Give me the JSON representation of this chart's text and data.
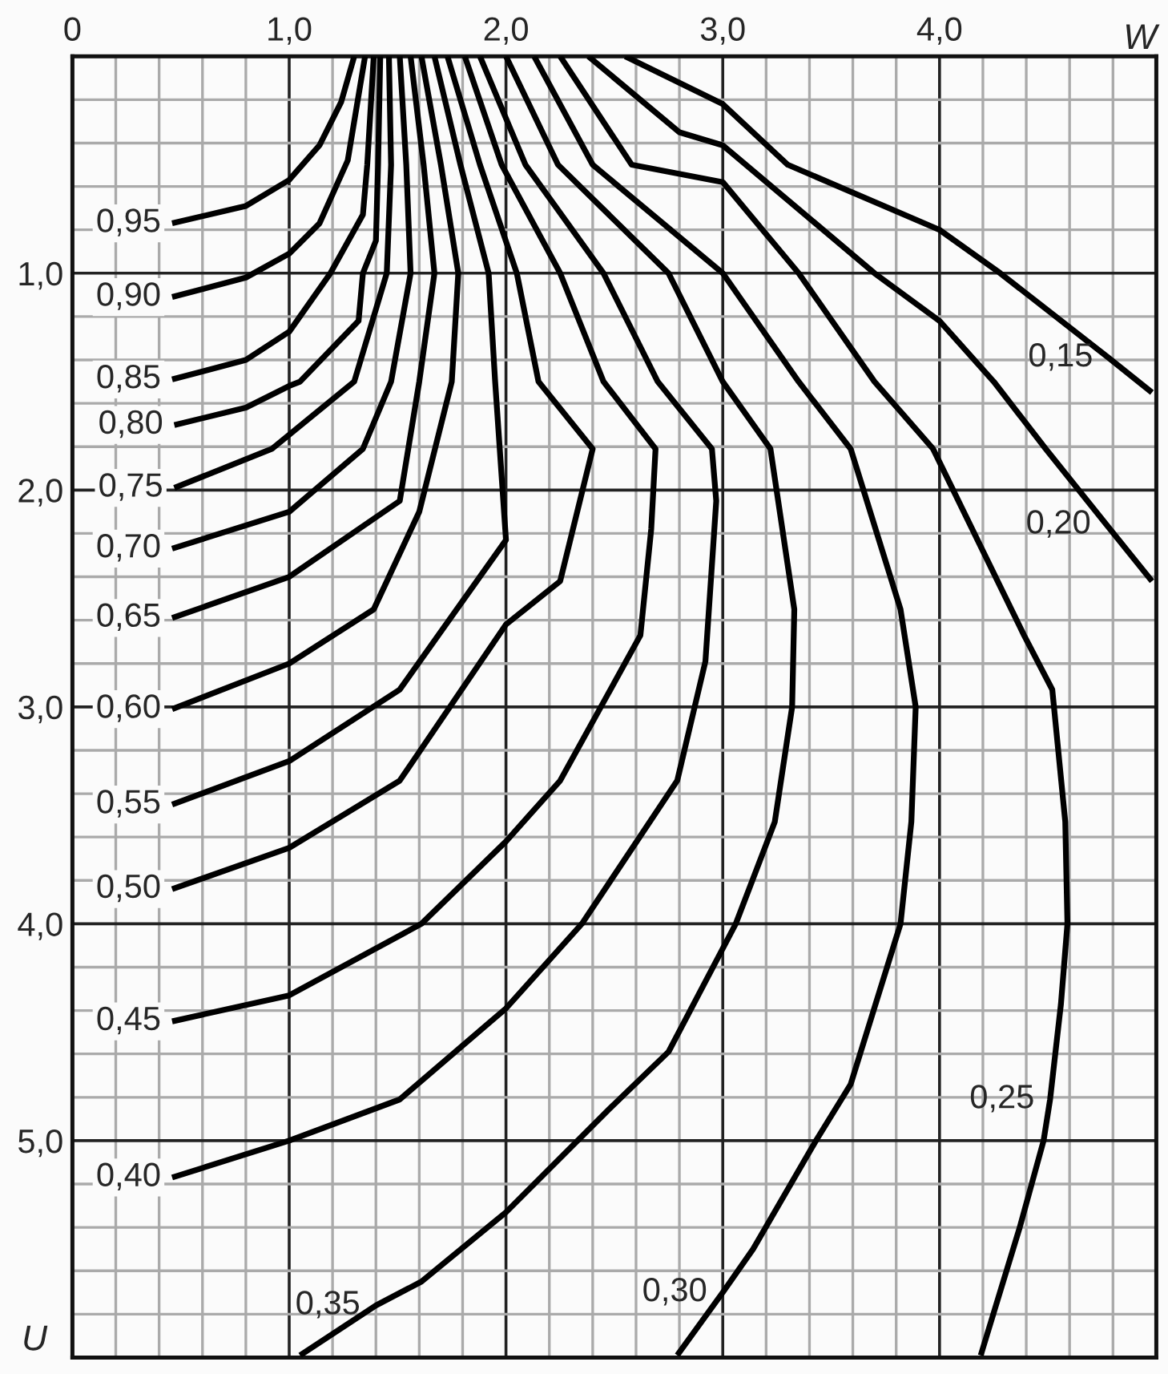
{
  "chart_data": {
    "type": "line",
    "xlabel": "W",
    "ylabel": "U",
    "xlim": [
      0,
      5
    ],
    "ylim": [
      6,
      0
    ],
    "xticks": [
      0,
      {
        "value": 1,
        "label": "1,0"
      },
      {
        "value": 2,
        "label": "2,0"
      },
      {
        "value": 3,
        "label": "3,0"
      },
      {
        "value": 4,
        "label": "4,0"
      }
    ],
    "yticks": [
      {
        "value": 1,
        "label": "1,0"
      },
      {
        "value": 2,
        "label": "2,0"
      },
      {
        "value": 3,
        "label": "3,0"
      },
      {
        "value": 4,
        "label": "4,0"
      },
      {
        "value": 5,
        "label": "5,0"
      }
    ],
    "grid": true,
    "legend": false,
    "marker": "none",
    "line_style": "solid",
    "series": [
      {
        "color": "#000000",
        "x": [
          1.3,
          1.24,
          1.14,
          1.0,
          0.8,
          0.46
        ],
        "values": [
          0,
          0.21,
          0.41,
          0.57,
          0.69,
          0.77
        ]
      },
      {
        "color": "#000000",
        "x": [
          1.35,
          1.27,
          1.14,
          1.0,
          0.8,
          0.46
        ],
        "values": [
          0,
          0.48,
          0.77,
          0.91,
          1.02,
          1.11
        ]
      },
      {
        "color": "#000000",
        "x": [
          1.39,
          1.36,
          1.34,
          1.19,
          1.0,
          0.8,
          0.46
        ],
        "values": [
          0,
          0.5,
          0.73,
          1.0,
          1.27,
          1.4,
          1.49
        ]
      },
      {
        "color": "#000000",
        "x": [
          1.42,
          1.41,
          1.4,
          1.34,
          1.32,
          1.05,
          1.0,
          0.8,
          0.47
        ],
        "values": [
          0,
          0.5,
          0.85,
          1.0,
          1.22,
          1.5,
          1.52,
          1.62,
          1.7
        ]
      },
      {
        "color": "#000000",
        "x": [
          1.46,
          1.47,
          1.45,
          1.3,
          0.92,
          0.47
        ],
        "values": [
          0,
          0.5,
          1.0,
          1.5,
          1.81,
          1.99
        ]
      },
      {
        "color": "#000000",
        "x": [
          1.51,
          1.54,
          1.56,
          1.47,
          1.34,
          1.0,
          0.46
        ],
        "values": [
          0,
          0.5,
          1.0,
          1.5,
          1.81,
          2.1,
          2.27
        ]
      },
      {
        "color": "#000000",
        "x": [
          1.56,
          1.62,
          1.67,
          1.6,
          1.51,
          1.0,
          0.46
        ],
        "values": [
          0,
          0.5,
          1.0,
          1.5,
          2.05,
          2.4,
          2.59
        ]
      },
      {
        "color": "#000000",
        "x": [
          1.61,
          1.7,
          1.78,
          1.75,
          1.6,
          1.39,
          1.0,
          0.46
        ],
        "values": [
          0,
          0.5,
          1.0,
          1.5,
          2.1,
          2.55,
          2.8,
          3.01
        ]
      },
      {
        "color": "#000000",
        "x": [
          1.67,
          1.79,
          1.92,
          1.95,
          2.0,
          1.51,
          1.0,
          0.46
        ],
        "values": [
          0,
          0.5,
          1.0,
          1.5,
          2.23,
          2.92,
          3.25,
          3.45
        ]
      },
      {
        "color": "#000000",
        "x": [
          1.73,
          1.88,
          2.05,
          2.15,
          2.4,
          2.25,
          2.0,
          1.51,
          1.0,
          0.46
        ],
        "values": [
          0,
          0.5,
          1.0,
          1.5,
          1.81,
          2.42,
          2.62,
          3.34,
          3.65,
          3.84
        ]
      },
      {
        "color": "#000000",
        "x": [
          1.81,
          1.98,
          2.25,
          2.45,
          2.69,
          2.67,
          2.62,
          2.25,
          2.0,
          1.61,
          1.0,
          0.46
        ],
        "values": [
          0,
          0.5,
          1.0,
          1.5,
          1.81,
          2.18,
          2.67,
          3.34,
          3.62,
          4.0,
          4.33,
          4.45
        ]
      },
      {
        "color": "#000000",
        "x": [
          1.88,
          2.09,
          2.45,
          2.7,
          2.95,
          2.97,
          2.92,
          2.79,
          2.35,
          2.0,
          1.51,
          1.0,
          0.46
        ],
        "values": [
          0,
          0.5,
          1.0,
          1.5,
          1.81,
          2.05,
          2.79,
          3.34,
          4.0,
          4.39,
          4.81,
          5.0,
          5.17
        ]
      },
      {
        "color": "#000000",
        "x": [
          2.0,
          2.24,
          2.75,
          3.0,
          3.22,
          3.33,
          3.32,
          3.24,
          3.06,
          2.75,
          2.47,
          2.0,
          1.61,
          1.4,
          1.05
        ],
        "values": [
          0,
          0.5,
          1.0,
          1.5,
          1.81,
          2.55,
          3.0,
          3.53,
          4.0,
          4.59,
          4.86,
          5.33,
          5.65,
          5.76,
          5.99
        ]
      },
      {
        "color": "#000000",
        "x": [
          2.13,
          2.4,
          3.0,
          3.35,
          3.59,
          3.82,
          3.89,
          3.87,
          3.82,
          3.59,
          3.43,
          3.14,
          3.0,
          2.79
        ],
        "values": [
          0,
          0.5,
          1.0,
          1.5,
          1.81,
          2.55,
          3.0,
          3.53,
          4.0,
          4.74,
          5.0,
          5.5,
          5.7,
          5.99
        ]
      },
      {
        "color": "#000000",
        "x": [
          2.25,
          2.58,
          3.0,
          3.35,
          3.7,
          3.97,
          4.39,
          4.52,
          4.58,
          4.59,
          4.56,
          4.51,
          4.48,
          4.37,
          4.19
        ],
        "values": [
          0,
          0.5,
          0.58,
          1.0,
          1.5,
          1.81,
          2.67,
          2.92,
          3.53,
          4.0,
          4.37,
          4.81,
          5.0,
          5.4,
          5.99
        ]
      },
      {
        "color": "#000000",
        "x": [
          2.38,
          2.8,
          3.0,
          3.7,
          4.0,
          4.25,
          4.49,
          4.77,
          4.98
        ],
        "values": [
          0,
          0.35,
          0.41,
          1.0,
          1.22,
          1.5,
          1.81,
          2.16,
          2.42
        ]
      },
      {
        "color": "#000000",
        "x": [
          2.55,
          3.0,
          3.3,
          4.0,
          4.28,
          4.78,
          4.98
        ],
        "values": [
          0,
          0.22,
          0.5,
          0.8,
          1.0,
          1.39,
          1.55
        ]
      }
    ],
    "annotations": [
      {
        "text": "0,95",
        "x": 0.46,
        "y": 0.77
      },
      {
        "text": "0,90",
        "x": 0.46,
        "y": 1.11
      },
      {
        "text": "0,85",
        "x": 0.46,
        "y": 1.49
      },
      {
        "text": "0,80",
        "x": 0.47,
        "y": 1.7
      },
      {
        "text": "0,75",
        "x": 0.47,
        "y": 1.99
      },
      {
        "text": "0,70",
        "x": 0.46,
        "y": 2.27
      },
      {
        "text": "0,65",
        "x": 0.46,
        "y": 2.59
      },
      {
        "text": "0,60",
        "x": 0.46,
        "y": 3.01
      },
      {
        "text": "0,55",
        "x": 0.46,
        "y": 3.45
      },
      {
        "text": "0,50",
        "x": 0.46,
        "y": 3.84
      },
      {
        "text": "0,45",
        "x": 0.46,
        "y": 4.45
      },
      {
        "text": "0,40",
        "x": 0.46,
        "y": 5.17
      },
      {
        "text": "0,35",
        "x": 1.4,
        "y": 5.76
      },
      {
        "text": "0,30",
        "x": 3.0,
        "y": 5.7
      },
      {
        "text": "0,25",
        "x": 4.51,
        "y": 4.81
      },
      {
        "text": "0,20",
        "x": 4.77,
        "y": 2.16
      },
      {
        "text": "0,15",
        "x": 4.78,
        "y": 1.39
      }
    ]
  }
}
